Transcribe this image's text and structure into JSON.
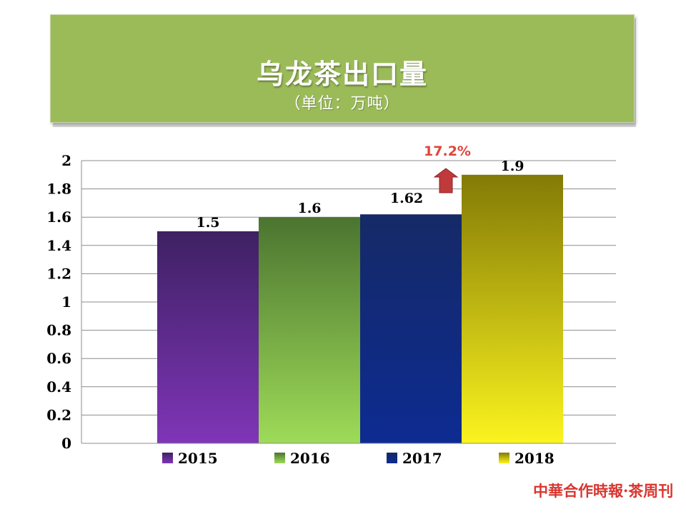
{
  "header": {
    "title": "乌龙茶出口量",
    "subtitle": "（单位：万吨）"
  },
  "chart_data": {
    "type": "bar",
    "categories": [
      "2015",
      "2016",
      "2017",
      "2018"
    ],
    "values": [
      1.5,
      1.6,
      1.62,
      1.9
    ],
    "data_labels": [
      "1.5",
      "1.6",
      "1.62",
      "1.9"
    ],
    "ylim": [
      0,
      2
    ],
    "yticks": [
      "0",
      "0.2",
      "0.4",
      "0.6",
      "0.8",
      "1",
      "1.2",
      "1.4",
      "1.6",
      "1.8",
      "2"
    ],
    "grid": true,
    "legend_position": "bottom",
    "colors": {
      "2015": [
        "#3e2163",
        "#7f35b7"
      ],
      "2016": [
        "#4b7430",
        "#9edb58"
      ],
      "2017": [
        "#152a66",
        "#0d2b92"
      ],
      "2018": [
        "#837a06",
        "#fbf41e"
      ]
    },
    "annotation": {
      "text": "17.2%",
      "arrow": "up",
      "color": "#c0393b"
    }
  },
  "watermark": "中華合作時報·茶周刊"
}
